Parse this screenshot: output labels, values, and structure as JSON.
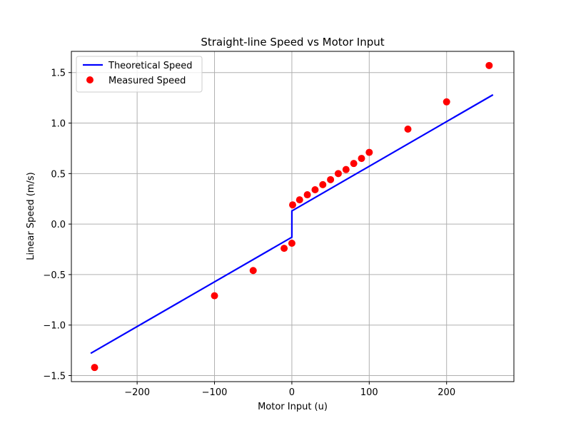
{
  "chart_data": {
    "type": "line",
    "title": "Straight-line Speed vs Motor Input",
    "xlabel": "Motor Input (u)",
    "ylabel": "Linear Speed (m/s)",
    "xlim": [
      -285,
      287
    ],
    "ylim": [
      -1.56,
      1.71
    ],
    "xticks": [
      -200,
      -100,
      0,
      100,
      200
    ],
    "xtick_labels": [
      "−200",
      "−100",
      "0",
      "100",
      "200"
    ],
    "yticks": [
      -1.5,
      -1.0,
      -0.5,
      0.0,
      0.5,
      1.0,
      1.5
    ],
    "ytick_labels": [
      "−1.5",
      "−1.0",
      "−0.5",
      "0.0",
      "0.5",
      "1.0",
      "1.5"
    ],
    "grid": true,
    "legend_position": "top-left",
    "series": [
      {
        "name": "Theoretical Speed",
        "kind": "line",
        "color": "#0000ff",
        "x": [
          -260,
          -0.01,
          0.01,
          260
        ],
        "y": [
          -1.28,
          -0.13,
          0.13,
          1.28
        ]
      },
      {
        "name": "Measured Speed",
        "kind": "scatter",
        "color": "#ff0000",
        "x": [
          -255,
          -100,
          -50,
          -10,
          0,
          1,
          10,
          20,
          30,
          40,
          50,
          60,
          70,
          80,
          90,
          100,
          150,
          200,
          255
        ],
        "y": [
          -1.42,
          -0.71,
          -0.46,
          -0.24,
          -0.19,
          0.19,
          0.24,
          0.29,
          0.34,
          0.39,
          0.44,
          0.5,
          0.54,
          0.6,
          0.65,
          0.71,
          0.94,
          1.21,
          1.57
        ]
      }
    ]
  }
}
